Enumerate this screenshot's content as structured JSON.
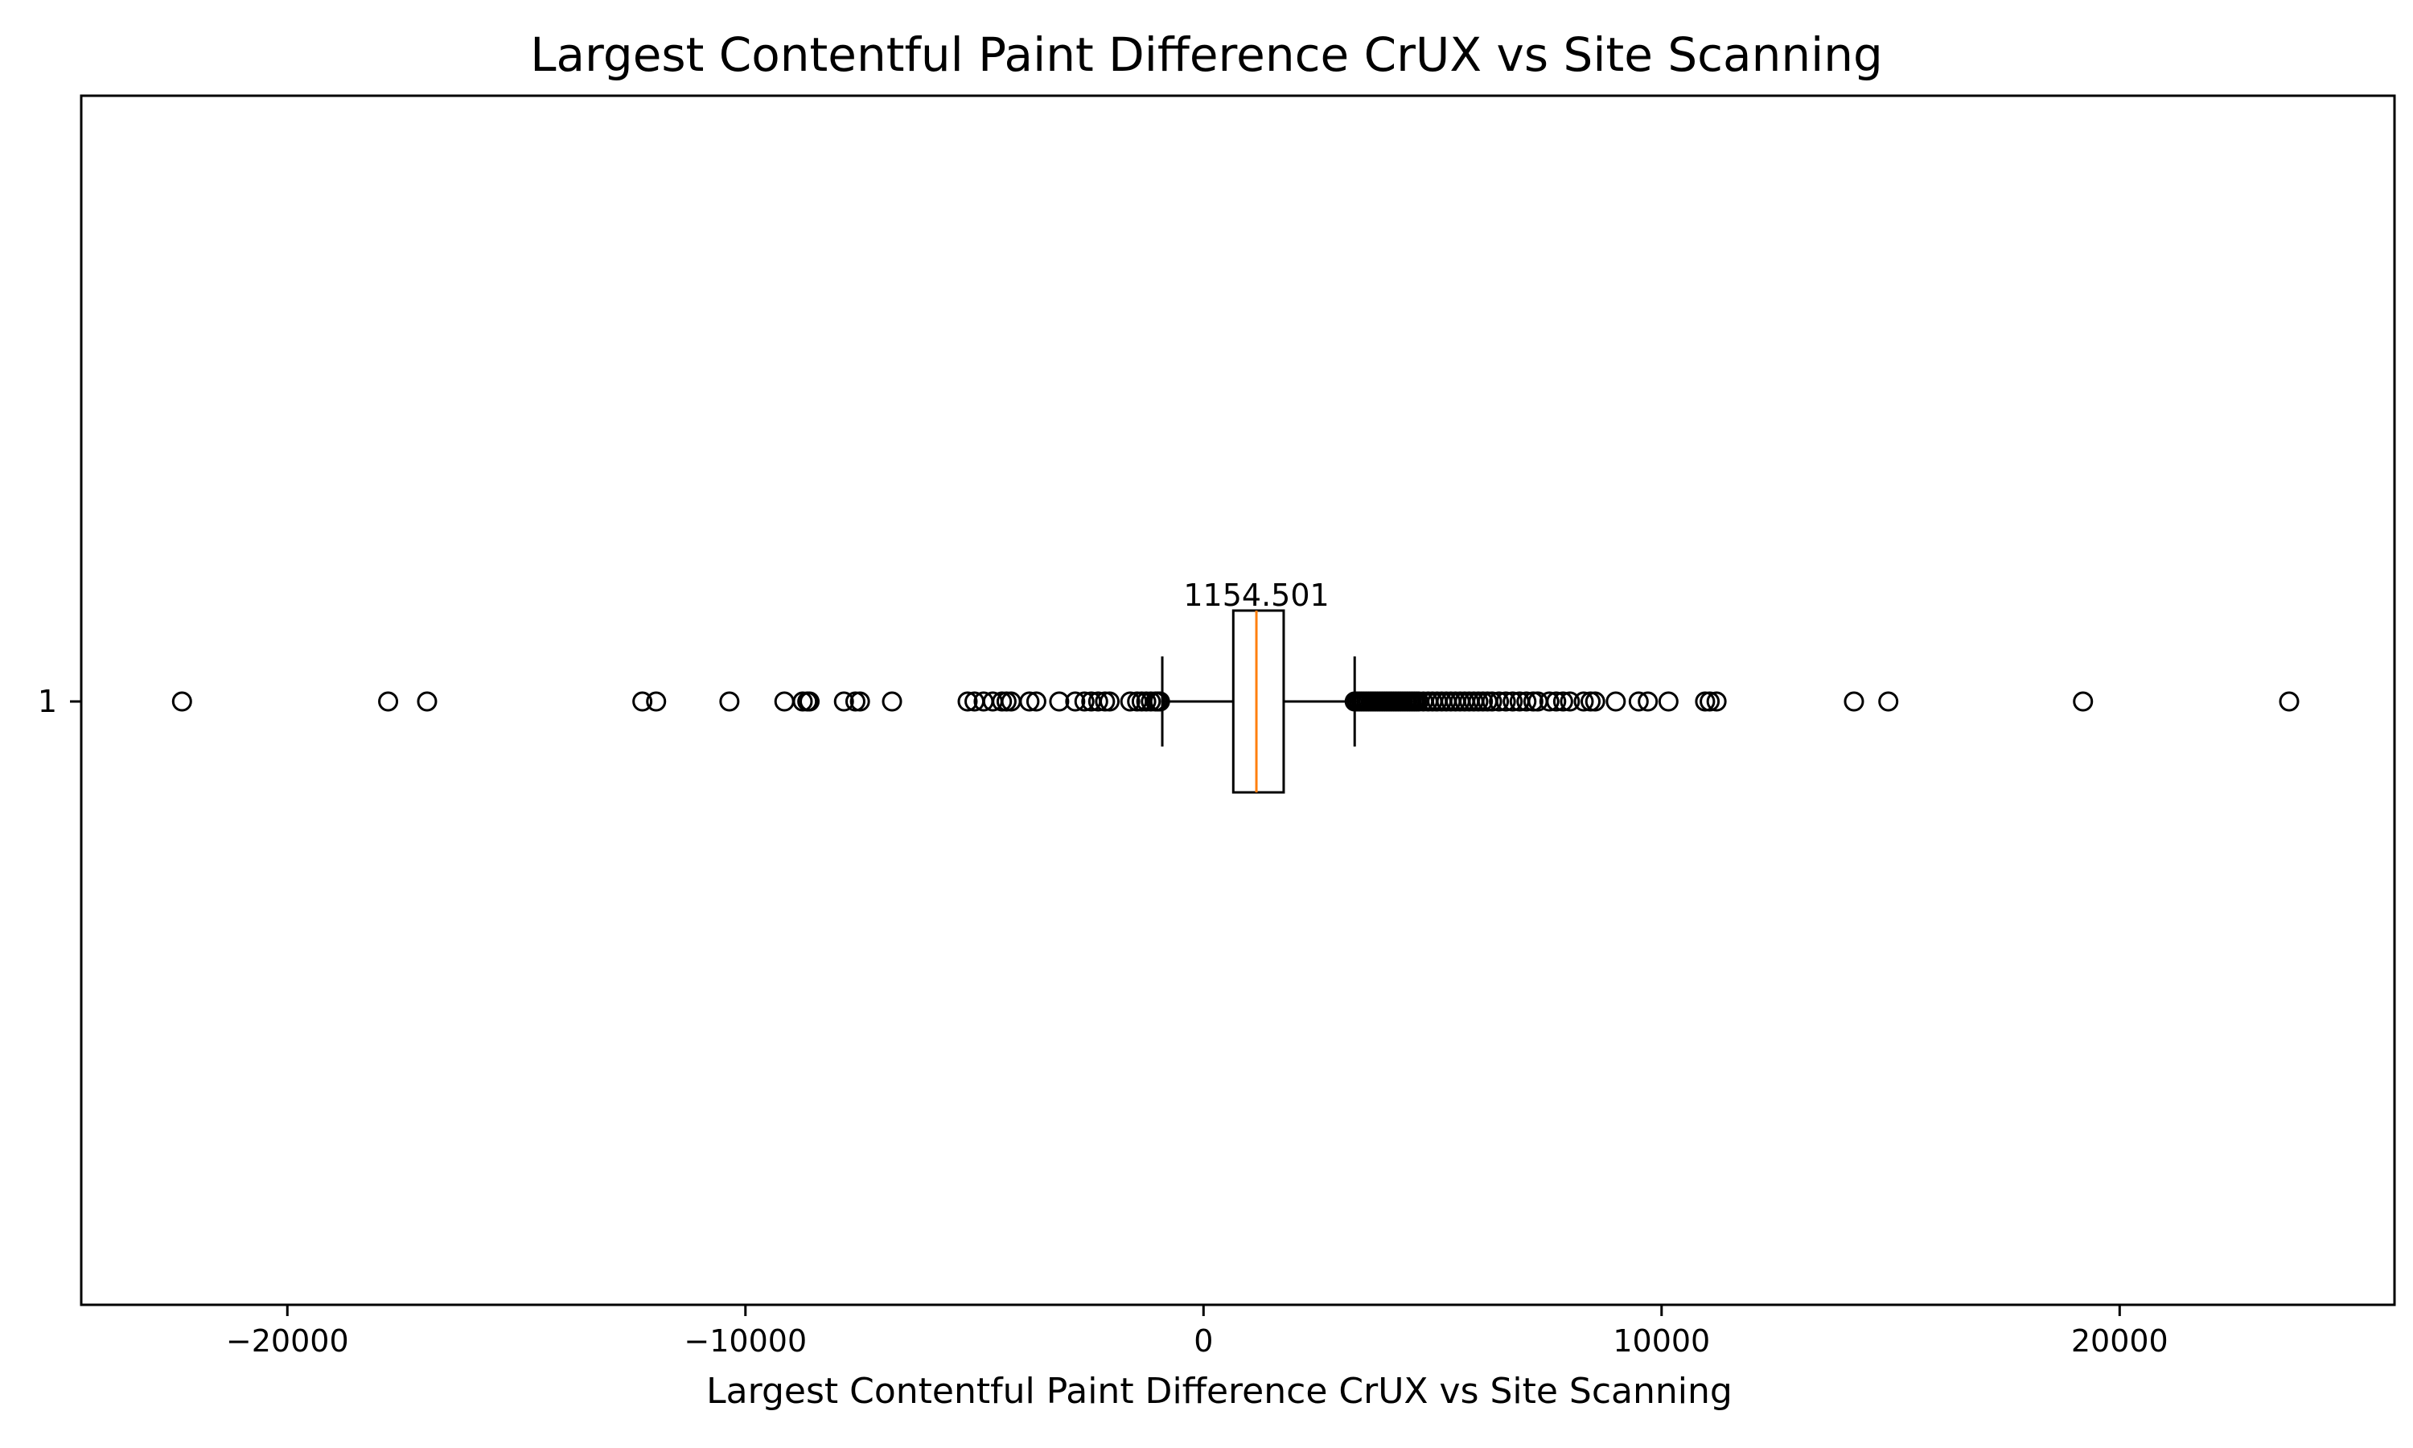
{
  "chart_data": {
    "type": "boxplot",
    "orientation": "horizontal",
    "title": "Largest Contentful Paint Difference CrUX vs Site Scanning",
    "xlabel": "Largest Contentful Paint Difference CrUX vs Site Scanning",
    "ylabel": "",
    "xlim": [
      -24500,
      26000
    ],
    "grid": false,
    "x_ticks": [
      {
        "value": -20000,
        "label": "−20000"
      },
      {
        "value": -10000,
        "label": "−10000"
      },
      {
        "value": 0,
        "label": "0"
      },
      {
        "value": 10000,
        "label": "10000"
      },
      {
        "value": 20000,
        "label": "20000"
      }
    ],
    "y_ticks": [
      {
        "value": 1,
        "label": "1"
      }
    ],
    "box": {
      "position": 1,
      "whisker_low": -900,
      "q1": 650,
      "median": 1154.501,
      "q3": 1750,
      "whisker_high": 3300,
      "median_label": "1154.501"
    },
    "outliers": [
      -22300,
      -17800,
      -16950,
      -12250,
      -11950,
      -10350,
      -9150,
      -8750,
      -8650,
      -8600,
      -7850,
      -7600,
      -7500,
      -6800,
      -5150,
      -5000,
      -4800,
      -4600,
      -4400,
      -4300,
      -4200,
      -3800,
      -3650,
      -3150,
      -2800,
      -2600,
      -2450,
      -2300,
      -2150,
      -2050,
      -1600,
      -1450,
      -1350,
      -1250,
      -1150,
      -1050,
      -1000,
      -950,
      3300,
      3350,
      3400,
      3450,
      3500,
      3550,
      3600,
      3650,
      3700,
      3750,
      3800,
      3850,
      3900,
      3950,
      4000,
      4050,
      4100,
      4150,
      4200,
      4250,
      4300,
      4350,
      4400,
      4450,
      4500,
      4550,
      4600,
      4650,
      4700,
      4800,
      4900,
      5000,
      5100,
      5200,
      5300,
      5400,
      5500,
      5600,
      5700,
      5800,
      5900,
      6000,
      6100,
      6200,
      6300,
      6450,
      6600,
      6750,
      6900,
      7050,
      7200,
      7300,
      7550,
      7700,
      7850,
      8000,
      8300,
      8450,
      8550,
      9000,
      9500,
      9700,
      10150,
      10950,
      11050,
      11200,
      14200,
      14950,
      19200,
      23700
    ],
    "colors": {
      "box": "#000000",
      "median": "#ff7f0e",
      "whisker": "#000000",
      "outlier": "#000000"
    }
  }
}
